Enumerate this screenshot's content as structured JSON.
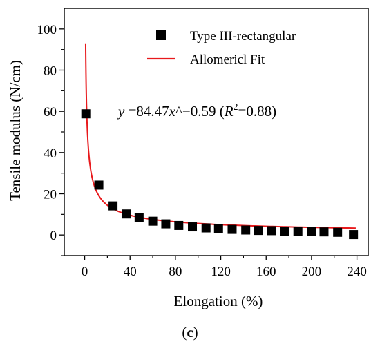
{
  "chart_data": {
    "type": "scatter",
    "xlabel": "Elongation (%)",
    "ylabel": "Tensile modulus (N/cm)",
    "xlim": [
      -18,
      250
    ],
    "ylim": [
      -10,
      110
    ],
    "xticks": [
      0,
      40,
      80,
      120,
      160,
      200,
      240
    ],
    "xtick_labels": [
      "0",
      "40",
      "80",
      "120",
      "160",
      "200",
      "240"
    ],
    "yticks": [
      0,
      20,
      40,
      60,
      80,
      100
    ],
    "ytick_labels": [
      "0",
      "20",
      "40",
      "60",
      "80",
      "100"
    ],
    "grid": false,
    "legend_position": "top-right",
    "series": [
      {
        "name": "Type III-rectangular",
        "kind": "scatter",
        "marker": "square",
        "color": "#000000",
        "x": [
          1,
          12.5,
          25,
          36.5,
          48,
          60,
          71.5,
          83,
          95,
          107,
          118,
          130,
          142,
          153,
          165,
          176,
          188,
          200,
          211,
          223,
          237
        ],
        "y": [
          58.8,
          24.2,
          14.1,
          10.2,
          8.3,
          6.7,
          5.4,
          4.6,
          3.9,
          3.4,
          3.0,
          2.7,
          2.4,
          2.2,
          2.1,
          1.9,
          1.8,
          1.7,
          1.5,
          1.3,
          0.2
        ]
      },
      {
        "name": "Allomericl Fit",
        "kind": "line",
        "color": "#e8191c",
        "equation": {
          "a": 84.47,
          "b": -0.59
        },
        "x_range": [
          0.85,
          239
        ]
      }
    ],
    "annotation": {
      "y_var": "y",
      "eq_mid": " =84.47",
      "x_var": "x",
      "eq_tail": "^−0.59 (",
      "r_var": "R",
      "r_sup": "2",
      "r_tail": "=0.88)"
    },
    "caption": {
      "open": "(",
      "letter": "c",
      "close": ")"
    }
  }
}
